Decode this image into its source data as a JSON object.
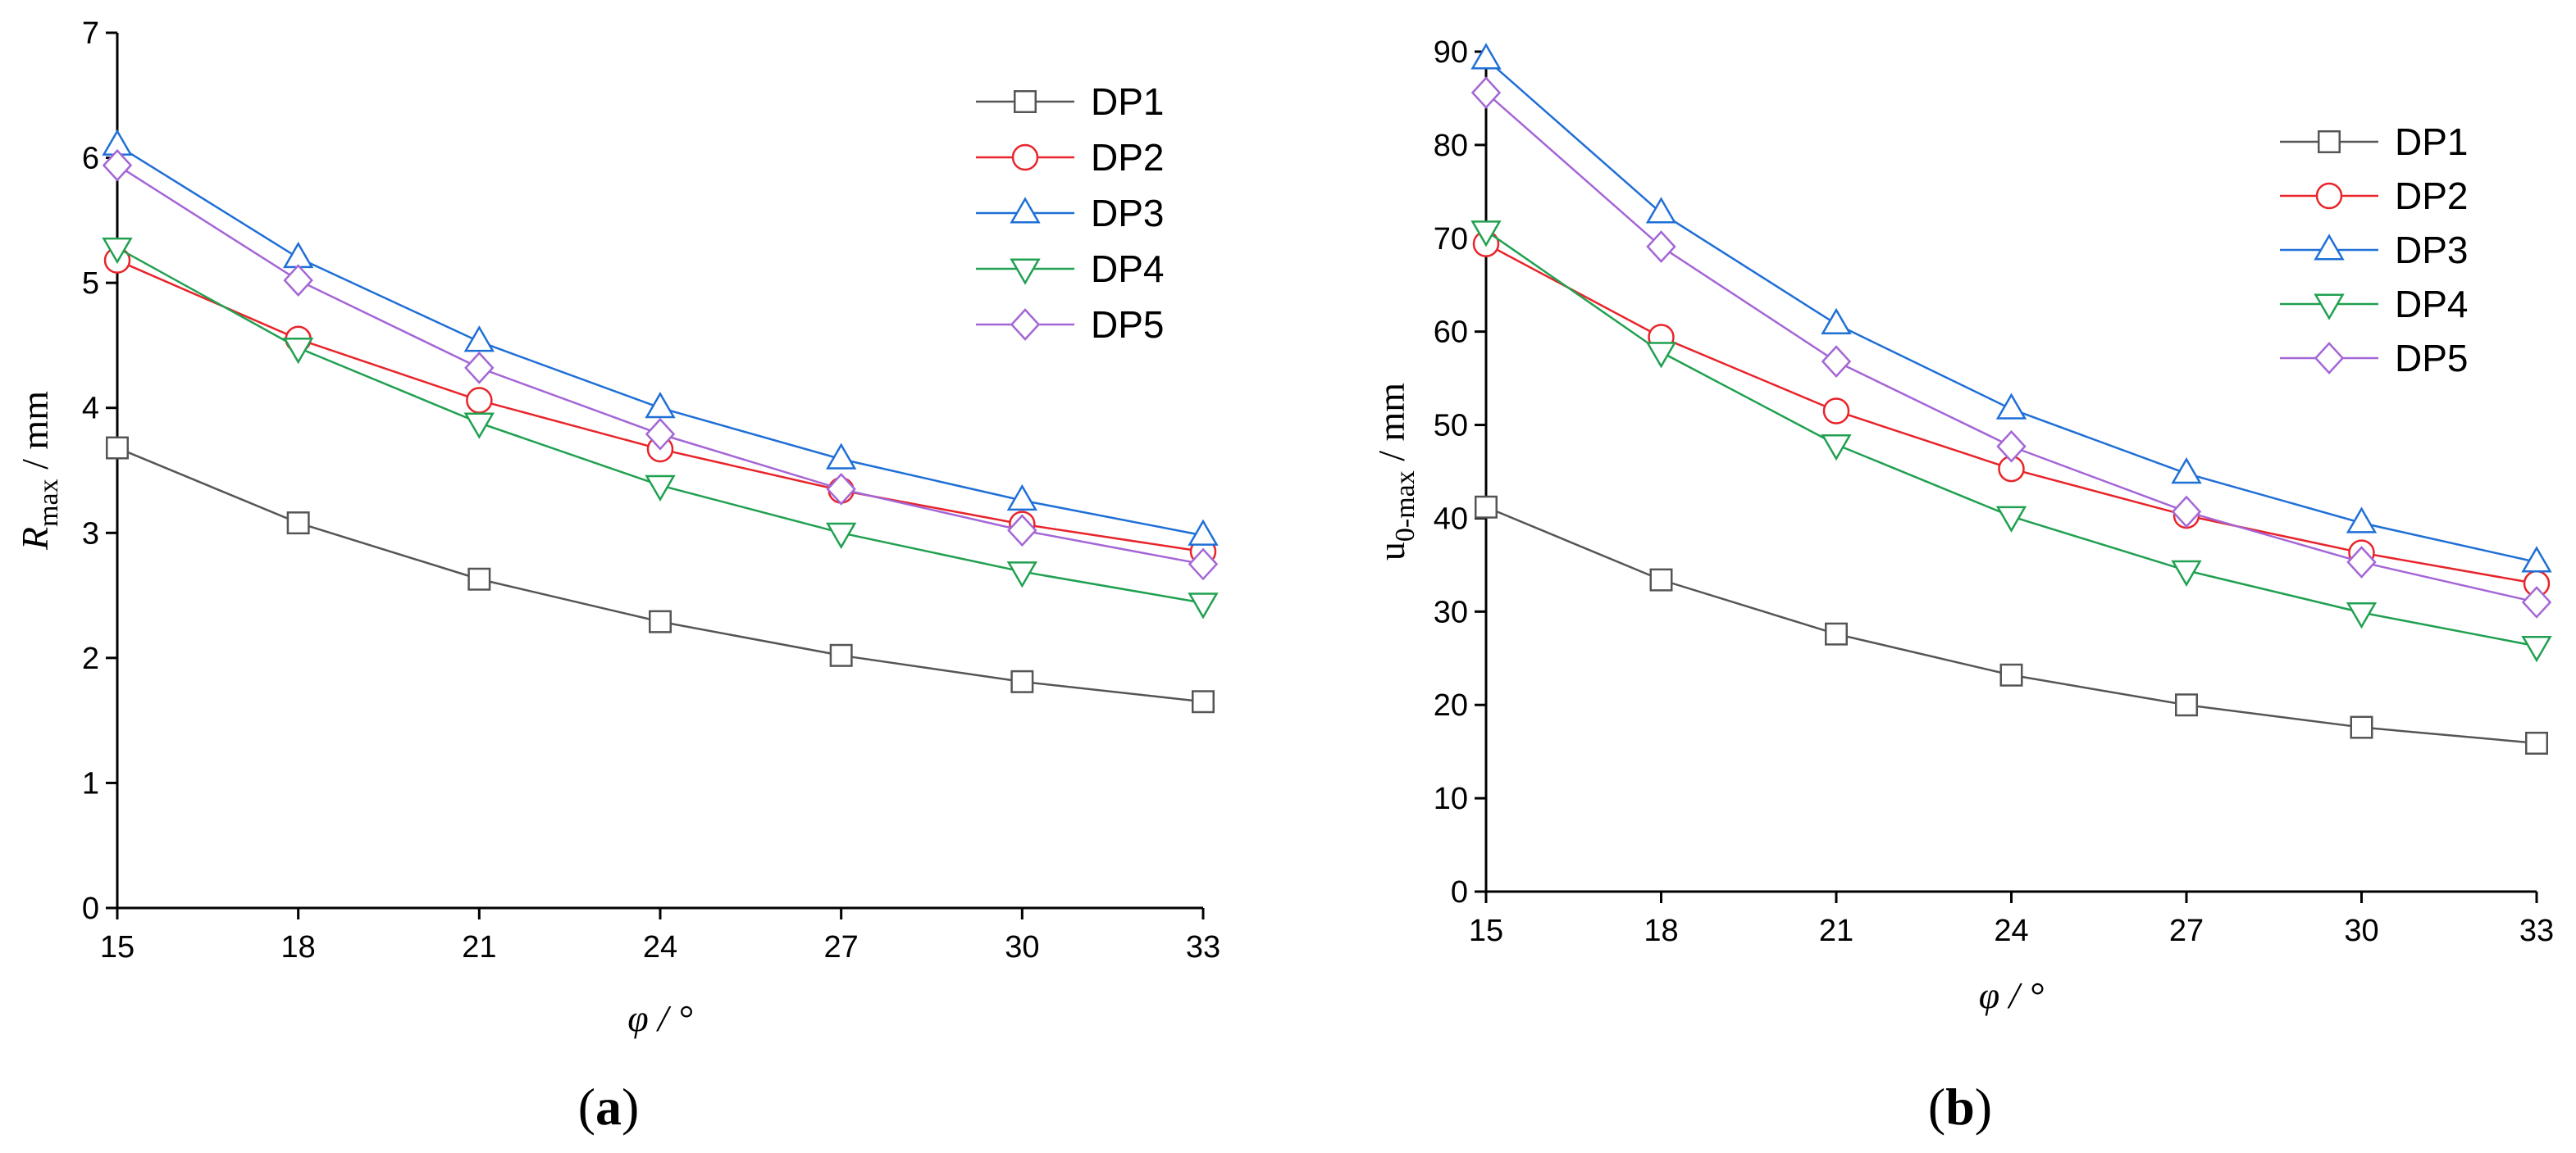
{
  "chart_data": [
    {
      "id": "a",
      "type": "line",
      "panel_label": "a",
      "title": "",
      "xlabel": "φ / °",
      "ylabel": "Rmax / mm",
      "ylabel_main": "R",
      "ylabel_sub": "max",
      "ylabel_unit": " / mm",
      "x": [
        15,
        18,
        21,
        24,
        27,
        30,
        33
      ],
      "xticks": [
        "15",
        "18",
        "21",
        "24",
        "27",
        "30",
        "33"
      ],
      "xlim": [
        15,
        33
      ],
      "ylim": [
        0,
        7
      ],
      "yticks": [
        "0",
        "1",
        "2",
        "3",
        "4",
        "5",
        "6",
        "7"
      ],
      "legend_position": "top-right",
      "series": [
        {
          "name": "DP1",
          "marker": "square",
          "color": "#555555",
          "values": [
            3.68,
            3.08,
            2.63,
            2.29,
            2.02,
            1.81,
            1.65
          ]
        },
        {
          "name": "DP2",
          "marker": "circle",
          "color": "#e8242a",
          "values": [
            5.18,
            4.55,
            4.06,
            3.67,
            3.34,
            3.07,
            2.85
          ]
        },
        {
          "name": "DP3",
          "marker": "triangle-up",
          "color": "#1f6fd6",
          "values": [
            6.1,
            5.2,
            4.53,
            4.0,
            3.59,
            3.26,
            2.98
          ]
        },
        {
          "name": "DP4",
          "marker": "triangle-down",
          "color": "#20a050",
          "values": [
            5.28,
            4.48,
            3.88,
            3.38,
            3.0,
            2.69,
            2.44
          ]
        },
        {
          "name": "DP5",
          "marker": "diamond",
          "color": "#a466d6",
          "values": [
            5.94,
            5.02,
            4.32,
            3.79,
            3.35,
            3.02,
            2.75
          ]
        }
      ]
    },
    {
      "id": "b",
      "type": "line",
      "panel_label": "b",
      "title": "",
      "xlabel": "φ / °",
      "ylabel": "u0-max / mm",
      "ylabel_main": "u",
      "ylabel_sub": "0-max",
      "ylabel_unit": " / mm",
      "x": [
        15,
        18,
        21,
        24,
        27,
        30,
        33
      ],
      "xticks": [
        "15",
        "18",
        "21",
        "24",
        "27",
        "30",
        "33"
      ],
      "xlim": [
        15,
        33
      ],
      "ylim": [
        0,
        90
      ],
      "yticks": [
        "0",
        "10",
        "20",
        "30",
        "40",
        "50",
        "60",
        "70",
        "80",
        "90"
      ],
      "legend_position": "top-right",
      "series": [
        {
          "name": "DP1",
          "marker": "square",
          "color": "#555555",
          "values": [
            41.2,
            33.4,
            27.6,
            23.2,
            20.0,
            17.6,
            15.9
          ]
        },
        {
          "name": "DP2",
          "marker": "circle",
          "color": "#e8242a",
          "values": [
            69.4,
            59.4,
            51.5,
            45.3,
            40.3,
            36.3,
            33.0
          ]
        },
        {
          "name": "DP3",
          "marker": "triangle-up",
          "color": "#1f6fd6",
          "values": [
            89.2,
            72.7,
            60.8,
            51.7,
            44.8,
            39.5,
            35.3
          ]
        },
        {
          "name": "DP4",
          "marker": "triangle-down",
          "color": "#20a050",
          "values": [
            70.8,
            57.8,
            47.9,
            40.2,
            34.4,
            29.9,
            26.3
          ]
        },
        {
          "name": "DP5",
          "marker": "diamond",
          "color": "#a466d6",
          "values": [
            85.6,
            69.1,
            56.8,
            47.7,
            40.7,
            35.3,
            31.0
          ]
        }
      ]
    }
  ]
}
